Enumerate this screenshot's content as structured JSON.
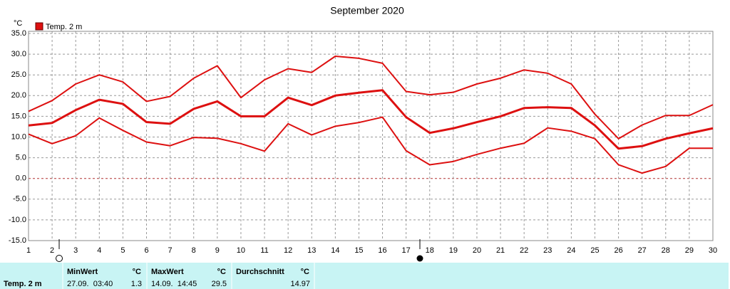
{
  "chart_data": {
    "type": "line",
    "title": "September 2020",
    "ylabel": "°C",
    "legend": "Temp. 2 m",
    "x": [
      1,
      2,
      3,
      4,
      5,
      6,
      7,
      8,
      9,
      10,
      11,
      12,
      13,
      14,
      15,
      16,
      17,
      18,
      19,
      20,
      21,
      22,
      23,
      24,
      25,
      26,
      27,
      28,
      29,
      30
    ],
    "xlim": [
      1,
      30
    ],
    "xticks": [
      1,
      2,
      3,
      4,
      5,
      6,
      7,
      8,
      9,
      10,
      11,
      12,
      13,
      14,
      15,
      16,
      17,
      18,
      19,
      20,
      21,
      22,
      23,
      24,
      25,
      26,
      27,
      28,
      29,
      30
    ],
    "ylim": [
      -15,
      35
    ],
    "yticks": [
      {
        "value": -15,
        "label": "-15.0"
      },
      {
        "value": -10,
        "label": "-10.0"
      },
      {
        "value": -5,
        "label": "-5.0"
      },
      {
        "value": 0,
        "label": "0.0"
      },
      {
        "value": 5,
        "label": "5.0"
      },
      {
        "value": 10,
        "label": "10.0"
      },
      {
        "value": 15,
        "label": "15.0"
      },
      {
        "value": 20,
        "label": "20.0"
      },
      {
        "value": 25,
        "label": "25.0"
      },
      {
        "value": 30,
        "label": "30.0"
      },
      {
        "value": 35,
        "label": "35.0"
      }
    ],
    "grid": true,
    "series": [
      {
        "color": "#dd1010",
        "values": [
          16.2,
          18.8,
          22.8,
          25.0,
          23.3,
          18.6,
          19.8,
          24.2,
          27.2,
          19.5,
          23.8,
          26.5,
          25.6,
          29.5,
          29.0,
          27.8,
          21.0,
          20.2,
          20.8,
          22.8,
          24.2,
          26.2,
          25.4,
          22.8,
          15.5,
          9.6,
          12.9,
          15.2,
          15.2,
          17.8
        ]
      },
      {
        "color": "#dd1010",
        "values": [
          12.8,
          13.4,
          16.5,
          19.0,
          18.0,
          13.6,
          13.2,
          16.8,
          18.6,
          15.0,
          15.0,
          19.5,
          17.7,
          20.0,
          20.7,
          21.3,
          14.8,
          11.0,
          12.1,
          13.6,
          15.0,
          17.0,
          17.2,
          17.0,
          12.8,
          7.2,
          7.8,
          9.6,
          10.9,
          12.1
        ]
      },
      {
        "color": "#dd1010",
        "values": [
          10.7,
          8.4,
          10.3,
          14.6,
          11.6,
          8.8,
          7.9,
          9.9,
          9.7,
          8.4,
          6.6,
          13.2,
          10.5,
          12.6,
          13.5,
          14.8,
          6.7,
          3.3,
          4.1,
          5.8,
          7.3,
          8.5,
          12.2,
          11.4,
          9.6,
          3.3,
          1.3,
          2.9,
          7.3,
          7.3
        ]
      }
    ]
  },
  "table": {
    "row_label": "Temp. 2 m",
    "min": {
      "header": "MinWert",
      "unit": "°C",
      "time": "27.09.  03:40",
      "value": "1.3"
    },
    "max": {
      "header": "MaxWert",
      "unit": "°C",
      "time": "14.09.  14:45",
      "value": "29.5"
    },
    "avg": {
      "header": "Durchschnitt",
      "unit": "°C",
      "value": "14.97"
    }
  }
}
